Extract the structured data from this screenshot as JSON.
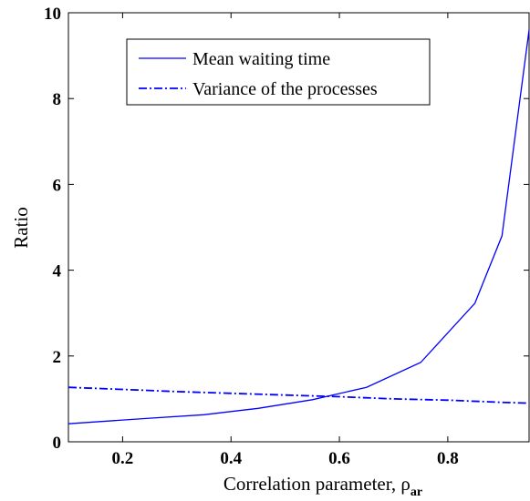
{
  "chart_data": {
    "type": "line",
    "xlabel": "Correlation parameter, ρ",
    "xlabel_subscript": "ar",
    "ylabel": "Ratio",
    "xlim": [
      0.1,
      0.95
    ],
    "ylim": [
      0,
      10
    ],
    "xticks": [
      0.2,
      0.4,
      0.6,
      0.8
    ],
    "yticks": [
      0,
      2,
      4,
      6,
      8,
      10
    ],
    "grid": false,
    "legend_position": "top-center",
    "series": [
      {
        "name": "Mean waiting time",
        "style": "solid",
        "color": "#0000ff",
        "x": [
          0.1,
          0.25,
          0.35,
          0.45,
          0.55,
          0.65,
          0.75,
          0.85,
          0.9,
          0.95
        ],
        "y": [
          0.42,
          0.55,
          0.63,
          0.78,
          0.98,
          1.27,
          1.85,
          3.23,
          4.8,
          9.6
        ]
      },
      {
        "name": "Variance of the processes",
        "style": "dashdot",
        "color": "#0000ff",
        "x": [
          0.1,
          0.2,
          0.3,
          0.4,
          0.5,
          0.6,
          0.7,
          0.8,
          0.9,
          0.95
        ],
        "y": [
          1.27,
          1.22,
          1.17,
          1.13,
          1.09,
          1.05,
          1.0,
          0.97,
          0.92,
          0.9
        ]
      }
    ]
  }
}
